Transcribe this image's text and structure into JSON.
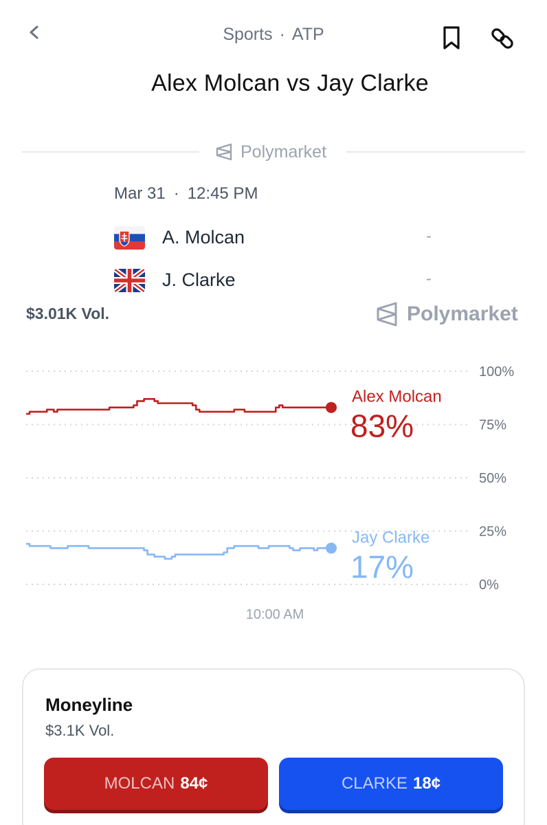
{
  "header": {
    "category": "Sports",
    "league": "ATP",
    "title": "Alex Molcan vs Jay Clarke"
  },
  "brand": {
    "name": "Polymarket"
  },
  "match": {
    "date": "Mar 31",
    "time": "12:45 PM",
    "teams": [
      {
        "name": "A. Molcan",
        "score": "-",
        "flag": "slovakia-flag-icon"
      },
      {
        "name": "J. Clarke",
        "score": "-",
        "flag": "uk-flag-icon"
      }
    ]
  },
  "volume": "$3.01K Vol.",
  "chart_data": {
    "type": "line",
    "xlabel": "10:00 AM",
    "ylim": [
      0,
      100
    ],
    "yticks": [
      "100%",
      "75%",
      "50%",
      "25%",
      "0%"
    ],
    "grid": true,
    "series": [
      {
        "name": "Alex Molcan",
        "label": "83%",
        "color": "#c0201e",
        "values": [
          80,
          81,
          81,
          81,
          81,
          81,
          82,
          82,
          81,
          82,
          82,
          82,
          82,
          82,
          82,
          82,
          82,
          82,
          82,
          82,
          82,
          82,
          82,
          82,
          83,
          83,
          83,
          83,
          83,
          83,
          83,
          84,
          86,
          86,
          87,
          87,
          87,
          86,
          85,
          85,
          85,
          85,
          85,
          85,
          85,
          85,
          85,
          85,
          84,
          82,
          81,
          81,
          81,
          81,
          81,
          81,
          81,
          81,
          81,
          81,
          82,
          82,
          82,
          81,
          81,
          81,
          81,
          81,
          81,
          81,
          81,
          81,
          83,
          84,
          83,
          83,
          83,
          83,
          83,
          83,
          83,
          83,
          83,
          83,
          83,
          83,
          83,
          83,
          83
        ]
      },
      {
        "name": "Jay Clarke",
        "label": "17%",
        "color": "#86b8f5",
        "values": [
          19,
          18,
          18,
          18,
          18,
          18,
          18,
          17,
          17,
          17,
          17,
          17,
          18,
          18,
          18,
          18,
          18,
          18,
          17,
          17,
          17,
          17,
          17,
          17,
          17,
          17,
          17,
          17,
          17,
          17,
          17,
          17,
          17,
          17,
          16,
          14,
          14,
          13,
          13,
          13,
          12,
          12,
          13,
          14,
          14,
          14,
          14,
          14,
          14,
          14,
          14,
          14,
          14,
          14,
          14,
          14,
          14,
          15,
          17,
          17,
          18,
          18,
          18,
          18,
          18,
          18,
          18,
          17,
          17,
          17,
          18,
          18,
          18,
          18,
          18,
          18,
          17,
          16,
          16,
          17,
          17,
          17,
          17,
          16,
          17,
          17,
          17,
          16,
          17
        ]
      }
    ]
  },
  "moneyline": {
    "title": "Moneyline",
    "volume": "$3.1K Vol.",
    "options": [
      {
        "name": "MOLCAN",
        "price": "84¢"
      },
      {
        "name": "CLARKE",
        "price": "18¢"
      }
    ]
  }
}
